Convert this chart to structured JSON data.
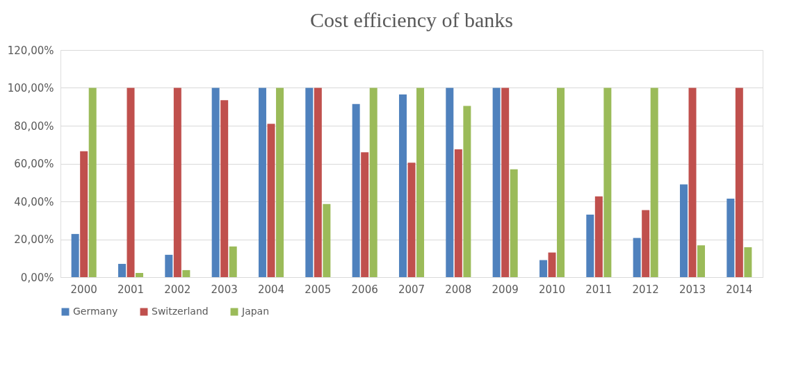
{
  "chart_data": {
    "type": "bar",
    "title": "Cost efficiency of banks",
    "categories": [
      "2000",
      "2001",
      "2002",
      "2003",
      "2004",
      "2005",
      "2006",
      "2007",
      "2008",
      "2009",
      "2010",
      "2011",
      "2012",
      "2013",
      "2014"
    ],
    "series": [
      {
        "name": "Germany",
        "color": "#4f81bd",
        "values": [
          22.8,
          7,
          11.8,
          100,
          100,
          100,
          91.5,
          96.5,
          100,
          100,
          9,
          33,
          20.7,
          49,
          41.5
        ]
      },
      {
        "name": "Switzerland",
        "color": "#c0504d",
        "values": [
          66.5,
          100,
          100,
          93.5,
          81,
          100,
          66,
          60.5,
          67.5,
          100,
          13,
          42.7,
          35.4,
          100,
          100
        ]
      },
      {
        "name": "Japan",
        "color": "#9bbb59",
        "values": [
          100,
          2.2,
          3.7,
          16.2,
          100,
          38.6,
          100,
          100,
          90.5,
          57,
          100,
          100,
          100,
          16.8,
          15.8
        ]
      }
    ],
    "ylim": [
      0,
      120
    ],
    "yticks": [
      {
        "value": 0,
        "label": "0,00%"
      },
      {
        "value": 20,
        "label": "20,00%"
      },
      {
        "value": 40,
        "label": "40,00%"
      },
      {
        "value": 60,
        "label": "60,00%"
      },
      {
        "value": 80,
        "label": "80,00%"
      },
      {
        "value": 100,
        "label": "100,00%"
      },
      {
        "value": 120,
        "label": "120,00%"
      }
    ],
    "grid": "y",
    "legend": "bottom"
  }
}
